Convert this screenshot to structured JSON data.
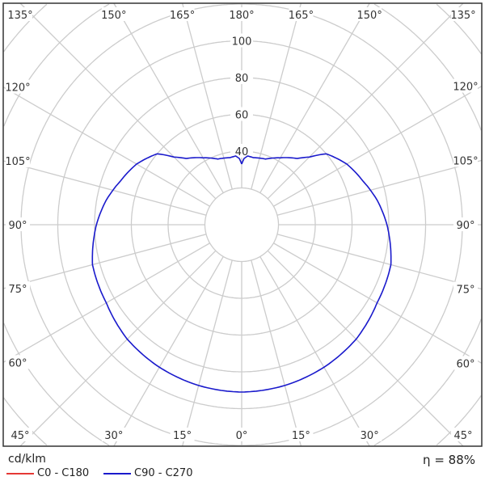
{
  "chart_data": {
    "type": "polar",
    "unit_label": "cd/klm",
    "efficiency_label": "η = 88%",
    "radial_ticks": [
      20,
      40,
      60,
      80,
      100
    ],
    "radial_tick_labels": [
      "40",
      "60",
      "80",
      "100"
    ],
    "angle_labels_left": [
      "135°",
      "150°",
      "165°",
      "180°",
      "120°",
      "105°",
      "90°",
      "75°",
      "60°",
      "45°",
      "30°",
      "15°",
      "0°"
    ],
    "angle_step_deg": 15,
    "grid": true,
    "legend": [
      {
        "name": "C0 - C180",
        "color": "#e53935"
      },
      {
        "name": "C90 - C270",
        "color": "#1a1acc"
      }
    ],
    "series": [
      {
        "name": "C90 - C270",
        "color": "#1a1acc",
        "symmetric": true,
        "gamma": [
          0,
          15,
          30,
          45,
          60,
          75,
          90,
          100,
          110,
          120,
          130,
          135,
          140,
          150,
          160,
          170,
          175,
          178,
          180
        ],
        "values": [
          91,
          90.5,
          89.5,
          88,
          85,
          84,
          79,
          75,
          70,
          66,
          60,
          52,
          47,
          42,
          38,
          37,
          37.5,
          36,
          33
        ]
      }
    ]
  }
}
